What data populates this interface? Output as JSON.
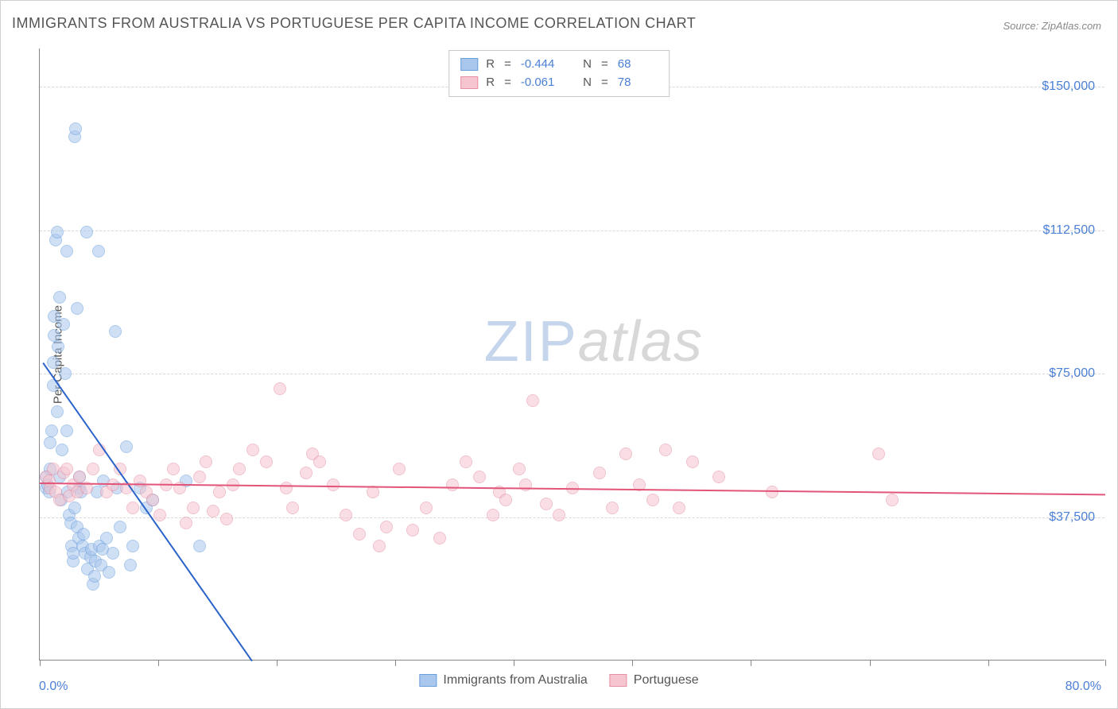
{
  "title": "IMMIGRANTS FROM AUSTRALIA VS PORTUGUESE PER CAPITA INCOME CORRELATION CHART",
  "source": "Source: ZipAtlas.com",
  "watermark": {
    "zip": "ZIP",
    "atlas": "atlas"
  },
  "chart": {
    "type": "scatter",
    "background_color": "#ffffff",
    "grid_color": "#d8d8d8",
    "axis_color": "#888888",
    "y_axis_title": "Per Capita Income",
    "xlim": [
      0,
      80
    ],
    "ylim": [
      0,
      160000
    ],
    "x_tick_positions": [
      0,
      8.9,
      17.8,
      26.7,
      35.6,
      44.5,
      53.4,
      62.3,
      71.2,
      80
    ],
    "x_tick_labels_visible": {
      "min": "0.0%",
      "max": "80.0%"
    },
    "y_ticks": [
      {
        "value": 37500,
        "label": "$37,500"
      },
      {
        "value": 75000,
        "label": "$75,000"
      },
      {
        "value": 112500,
        "label": "$112,500"
      },
      {
        "value": 150000,
        "label": "$150,000"
      }
    ],
    "label_color": "#4a7fd6",
    "label_fontsize": 16,
    "marker_radius": 8,
    "marker_opacity": 0.55,
    "series": [
      {
        "id": "australia",
        "name": "Immigrants from Australia",
        "color_fill": "#a9c6ec",
        "color_stroke": "#6a9fde",
        "trend_color": "#2a63c9",
        "trend_width": 2,
        "R": "-0.444",
        "N": "68",
        "trend": {
          "x1": 0.3,
          "y1": 78000,
          "x2": 16,
          "y2": 0
        },
        "points": [
          [
            0.5,
            45000
          ],
          [
            0.5,
            48000
          ],
          [
            0.6,
            46000
          ],
          [
            0.7,
            44000
          ],
          [
            0.8,
            50000
          ],
          [
            0.8,
            57000
          ],
          [
            0.9,
            60000
          ],
          [
            1.0,
            78000
          ],
          [
            1.0,
            72000
          ],
          [
            1.1,
            85000
          ],
          [
            1.1,
            90000
          ],
          [
            1.2,
            110000
          ],
          [
            1.3,
            112000
          ],
          [
            1.3,
            65000
          ],
          [
            1.4,
            82000
          ],
          [
            1.5,
            95000
          ],
          [
            1.5,
            48000
          ],
          [
            1.6,
            42000
          ],
          [
            1.7,
            55000
          ],
          [
            1.8,
            88000
          ],
          [
            1.9,
            75000
          ],
          [
            2.0,
            107000
          ],
          [
            2.0,
            60000
          ],
          [
            2.1,
            44000
          ],
          [
            2.2,
            38000
          ],
          [
            2.3,
            36000
          ],
          [
            2.4,
            30000
          ],
          [
            2.5,
            26000
          ],
          [
            2.5,
            28000
          ],
          [
            2.6,
            40000
          ],
          [
            2.6,
            137000
          ],
          [
            2.7,
            139000
          ],
          [
            2.8,
            92000
          ],
          [
            2.8,
            35000
          ],
          [
            2.9,
            32000
          ],
          [
            3.0,
            48000
          ],
          [
            3.0,
            45000
          ],
          [
            3.1,
            44000
          ],
          [
            3.2,
            30000
          ],
          [
            3.3,
            33000
          ],
          [
            3.4,
            28000
          ],
          [
            3.5,
            112000
          ],
          [
            3.6,
            24000
          ],
          [
            3.8,
            27000
          ],
          [
            3.9,
            29000
          ],
          [
            4.0,
            20000
          ],
          [
            4.1,
            22000
          ],
          [
            4.2,
            26000
          ],
          [
            4.3,
            44000
          ],
          [
            4.4,
            107000
          ],
          [
            4.5,
            30000
          ],
          [
            4.6,
            25000
          ],
          [
            4.7,
            29000
          ],
          [
            4.8,
            47000
          ],
          [
            5.0,
            32000
          ],
          [
            5.2,
            23000
          ],
          [
            5.5,
            28000
          ],
          [
            5.7,
            86000
          ],
          [
            5.8,
            45000
          ],
          [
            6.0,
            35000
          ],
          [
            6.5,
            56000
          ],
          [
            6.8,
            25000
          ],
          [
            7.0,
            30000
          ],
          [
            7.5,
            45000
          ],
          [
            8.0,
            40000
          ],
          [
            8.5,
            42000
          ],
          [
            11.0,
            47000
          ],
          [
            12.0,
            30000
          ]
        ]
      },
      {
        "id": "portuguese",
        "name": "Portuguese",
        "color_fill": "#f5c6d0",
        "color_stroke": "#e78fa4",
        "trend_color": "#e25578",
        "trend_width": 2,
        "R": "-0.061",
        "N": "78",
        "trend": {
          "x1": 0,
          "y1": 46500,
          "x2": 80,
          "y2": 43500
        },
        "points": [
          [
            0.5,
            48000
          ],
          [
            0.7,
            47000
          ],
          [
            0.8,
            45000
          ],
          [
            1.0,
            50000
          ],
          [
            1.2,
            44000
          ],
          [
            1.5,
            42000
          ],
          [
            1.8,
            49000
          ],
          [
            2.0,
            50000
          ],
          [
            2.2,
            43000
          ],
          [
            2.5,
            46000
          ],
          [
            2.8,
            44000
          ],
          [
            3.0,
            48000
          ],
          [
            3.5,
            45000
          ],
          [
            4.0,
            50000
          ],
          [
            4.5,
            55000
          ],
          [
            5.0,
            44000
          ],
          [
            5.5,
            46000
          ],
          [
            6.0,
            50000
          ],
          [
            6.5,
            45000
          ],
          [
            7.0,
            40000
          ],
          [
            7.5,
            47000
          ],
          [
            8.0,
            44000
          ],
          [
            8.5,
            42000
          ],
          [
            9.0,
            38000
          ],
          [
            9.5,
            46000
          ],
          [
            10.0,
            50000
          ],
          [
            10.5,
            45000
          ],
          [
            11.0,
            36000
          ],
          [
            11.5,
            40000
          ],
          [
            12.0,
            48000
          ],
          [
            12.5,
            52000
          ],
          [
            13.0,
            39000
          ],
          [
            13.5,
            44000
          ],
          [
            14.0,
            37000
          ],
          [
            14.5,
            46000
          ],
          [
            15.0,
            50000
          ],
          [
            16.0,
            55000
          ],
          [
            17.0,
            52000
          ],
          [
            18.0,
            71000
          ],
          [
            18.5,
            45000
          ],
          [
            19.0,
            40000
          ],
          [
            20.0,
            49000
          ],
          [
            20.5,
            54000
          ],
          [
            21.0,
            52000
          ],
          [
            22.0,
            46000
          ],
          [
            23.0,
            38000
          ],
          [
            24.0,
            33000
          ],
          [
            25.0,
            44000
          ],
          [
            25.5,
            30000
          ],
          [
            26.0,
            35000
          ],
          [
            27.0,
            50000
          ],
          [
            28.0,
            34000
          ],
          [
            29.0,
            40000
          ],
          [
            30.0,
            32000
          ],
          [
            31.0,
            46000
          ],
          [
            32.0,
            52000
          ],
          [
            33.0,
            48000
          ],
          [
            34.0,
            38000
          ],
          [
            34.5,
            44000
          ],
          [
            35.0,
            42000
          ],
          [
            36.0,
            50000
          ],
          [
            36.5,
            46000
          ],
          [
            37.0,
            68000
          ],
          [
            38.0,
            41000
          ],
          [
            39.0,
            38000
          ],
          [
            40.0,
            45000
          ],
          [
            42.0,
            49000
          ],
          [
            43.0,
            40000
          ],
          [
            44.0,
            54000
          ],
          [
            45.0,
            46000
          ],
          [
            46.0,
            42000
          ],
          [
            47.0,
            55000
          ],
          [
            48.0,
            40000
          ],
          [
            49.0,
            52000
          ],
          [
            51.0,
            48000
          ],
          [
            55.0,
            44000
          ],
          [
            63.0,
            54000
          ],
          [
            64.0,
            42000
          ]
        ]
      }
    ]
  },
  "legend_top": {
    "r_label": "R",
    "n_label": "N",
    "eq": " = "
  }
}
